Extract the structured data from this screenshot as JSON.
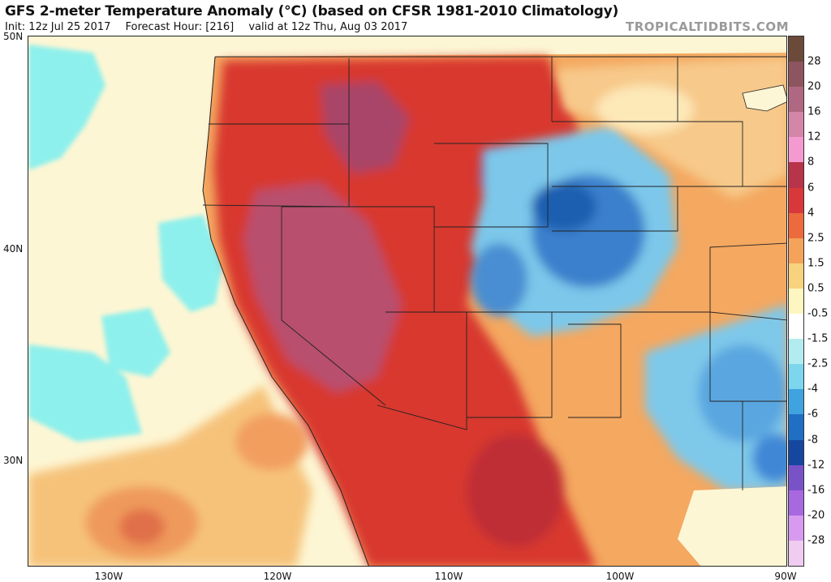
{
  "header": {
    "title": "GFS 2-meter Temperature Anomaly (°C) (based on CFSR 1981-2010 Climatology)",
    "init": "Init: 12z Jul 25 2017",
    "forecast_hour": "Forecast Hour: [216]",
    "valid": "valid at 12z Thu, Aug 03 2017",
    "brand": "TROPICALTIDBITS.COM"
  },
  "axes": {
    "lat_labels": [
      "50N",
      "40N",
      "30N"
    ],
    "lon_labels": [
      "130W",
      "120W",
      "110W",
      "100W",
      "90W"
    ]
  },
  "colorbar": {
    "labels": [
      "28",
      "20",
      "16",
      "12",
      "8",
      "6",
      "4",
      "2.5",
      "1.5",
      "0.5",
      "-0.5",
      "-1.5",
      "-2.5",
      "-4",
      "-6",
      "-8",
      "-12",
      "-16",
      "-20",
      "-28"
    ],
    "colors": [
      "#6b4a3a",
      "#8c5560",
      "#b06882",
      "#d486a8",
      "#f59ad0",
      "#b8344a",
      "#d9383a",
      "#ec6a3c",
      "#f5a35a",
      "#f9d27e",
      "#fdf6c0",
      "#ffffff",
      "#b3ecf0",
      "#7cd6ee",
      "#3fa3e0",
      "#1f6fc4",
      "#1647a0",
      "#7a52c8",
      "#a868e0",
      "#d79af0",
      "#f0ccf0"
    ]
  },
  "palette": {
    "ocean": "#fdf8dc",
    "warm_extreme": "#b55a8a",
    "warm_strong": "#c8323a",
    "warm": "#e4552e",
    "mild": "#f3a55c",
    "neutral": "#fdf3c6",
    "cool": "#8ccdea",
    "cold": "#2f6fc0",
    "pacific_cool": "#8ef0ec"
  }
}
